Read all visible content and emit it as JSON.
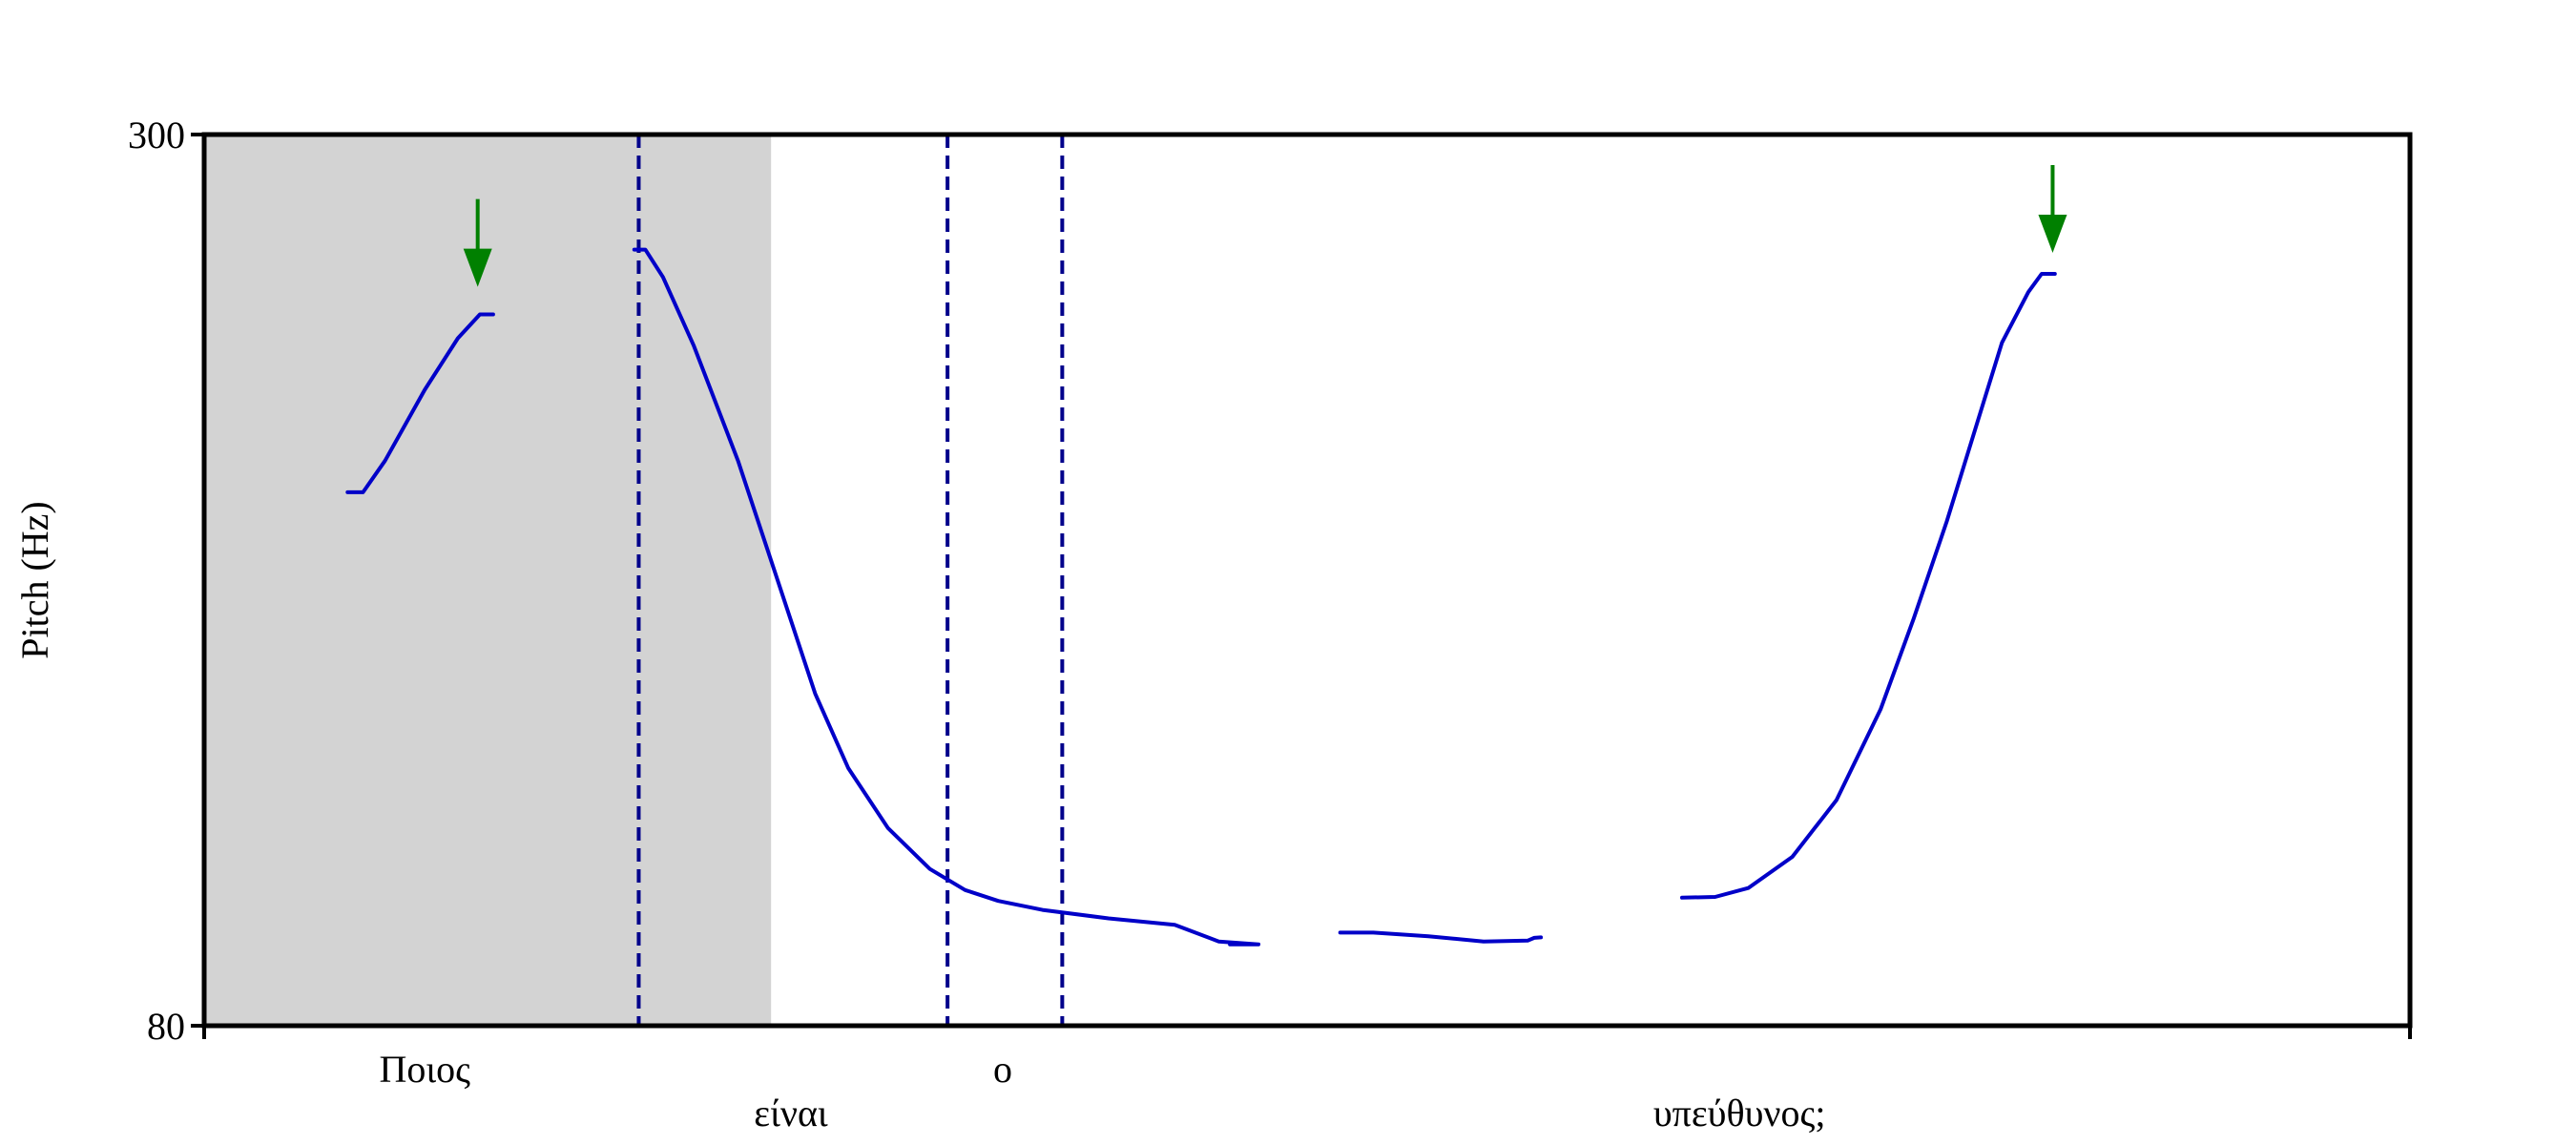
{
  "chart_data": {
    "type": "line",
    "ylabel": "Pitch (Hz)",
    "ylim": [
      80,
      300
    ],
    "xlim": [
      0,
      1
    ],
    "y_ticks": [
      "300",
      "80"
    ],
    "grid": false,
    "highlight_span": {
      "x": [
        0,
        0.257
      ],
      "color": "#d3d3d3"
    },
    "boundaries": [
      0.197,
      0.337,
      0.389
    ],
    "boundary_color": "#00008b",
    "words": [
      {
        "text": "Ποιος",
        "x": 0.1,
        "row": 1
      },
      {
        "text": "είναι",
        "x": 0.266,
        "row": 2
      },
      {
        "text": "ο",
        "x": 0.362,
        "row": 1
      },
      {
        "text": "υπεύθυνος;",
        "x": 0.696,
        "row": 2
      }
    ],
    "series": [
      {
        "color": "#0000c8",
        "segments": [
          [
            [
              0.065,
              211.7
            ],
            [
              0.072,
              211.7
            ],
            [
              0.082,
              219.5
            ],
            [
              0.1,
              237.0
            ],
            [
              0.115,
              249.7
            ],
            [
              0.125,
              255.6
            ],
            [
              0.131,
              255.6
            ]
          ],
          [
            [
              0.195,
              271.6
            ],
            [
              0.2,
              271.6
            ],
            [
              0.208,
              264.8
            ],
            [
              0.222,
              247.8
            ],
            [
              0.242,
              219.5
            ],
            [
              0.258,
              193.2
            ],
            [
              0.277,
              162.0
            ],
            [
              0.292,
              143.6
            ],
            [
              0.31,
              128.8
            ],
            [
              0.329,
              118.7
            ],
            [
              0.345,
              113.5
            ],
            [
              0.36,
              110.8
            ],
            [
              0.38,
              108.6
            ],
            [
              0.41,
              106.5
            ],
            [
              0.44,
              104.9
            ],
            [
              0.46,
              100.8
            ],
            [
              0.478,
              100.1
            ],
            [
              0.465,
              100.1
            ]
          ],
          [
            [
              0.515,
              103.0
            ],
            [
              0.53,
              103.0
            ],
            [
              0.555,
              102.1
            ],
            [
              0.58,
              100.8
            ],
            [
              0.6,
              101.0
            ],
            [
              0.603,
              101.7
            ],
            [
              0.606,
              101.8
            ]
          ],
          [
            [
              0.67,
              111.6
            ],
            [
              0.685,
              111.8
            ],
            [
              0.7,
              114.0
            ],
            [
              0.72,
              121.7
            ],
            [
              0.74,
              135.7
            ],
            [
              0.76,
              158.1
            ],
            [
              0.775,
              180.5
            ],
            [
              0.79,
              204.5
            ],
            [
              0.803,
              227.4
            ],
            [
              0.815,
              248.6
            ],
            [
              0.827,
              261.1
            ],
            [
              0.833,
              265.6
            ],
            [
              0.839,
              265.6
            ]
          ]
        ]
      }
    ],
    "markers": [
      {
        "x": 0.124,
        "y": 262.4,
        "color": "#008000"
      },
      {
        "x": 0.838,
        "y": 270.8,
        "color": "#008000"
      }
    ]
  }
}
